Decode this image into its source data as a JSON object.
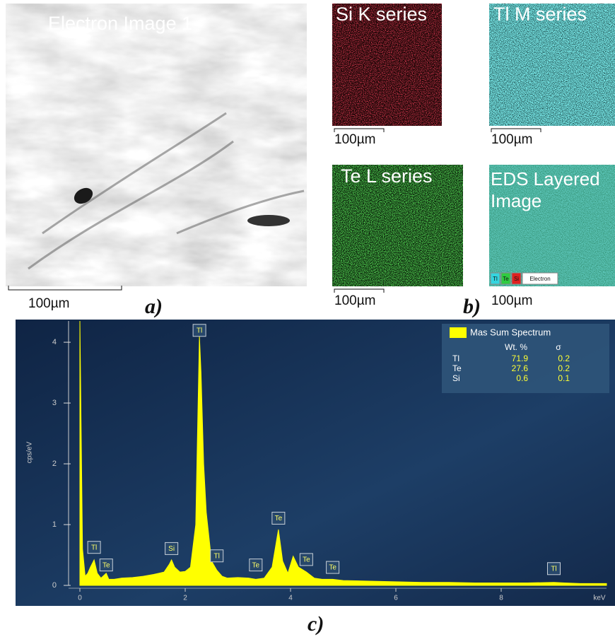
{
  "figure": {
    "a": {
      "title": "Electron Image 1",
      "scale": "100µm",
      "label": "a)"
    },
    "b": {
      "label": "b)",
      "panels": [
        {
          "title": "Si K series",
          "scale": "100µm"
        },
        {
          "title": "Tl M series",
          "scale": "100µm"
        },
        {
          "title": "Te L series",
          "scale": "100µm"
        },
        {
          "title": "EDS Layered Image",
          "scale": "100µm"
        }
      ],
      "layered_legend": [
        "Tl",
        "Te",
        "Si",
        "Electron"
      ]
    },
    "c": {
      "label": "c)"
    }
  },
  "chart_data": {
    "type": "area",
    "x_label": "keV",
    "y_label": "cps/eV",
    "xlim": [
      0,
      10
    ],
    "ylim": [
      0,
      4.35
    ],
    "xticks": [
      0,
      2,
      4,
      6,
      8
    ],
    "yticks": [
      0,
      1,
      2,
      3,
      4
    ],
    "series": [
      {
        "name": "Mas Sum Spectrum",
        "color": "#ffff00",
        "x": [
          0,
          0.05,
          0.1,
          0.15,
          0.2,
          0.27,
          0.33,
          0.4,
          0.5,
          0.55,
          0.65,
          0.8,
          1.0,
          1.2,
          1.4,
          1.5,
          1.6,
          1.7,
          1.74,
          1.8,
          1.9,
          2.0,
          2.1,
          2.2,
          2.27,
          2.3,
          2.35,
          2.4,
          2.5,
          2.6,
          2.7,
          2.8,
          3.0,
          3.2,
          3.34,
          3.5,
          3.65,
          3.77,
          3.85,
          3.95,
          4.05,
          4.15,
          4.3,
          4.45,
          4.6,
          4.8,
          5.0,
          5.5,
          6,
          6.5,
          7,
          7.5,
          8,
          8.5,
          9.0,
          9.2,
          9.5,
          10
        ],
        "values": [
          4.35,
          0.6,
          0.15,
          0.2,
          0.3,
          0.42,
          0.2,
          0.12,
          0.2,
          0.1,
          0.1,
          0.12,
          0.13,
          0.15,
          0.18,
          0.2,
          0.22,
          0.35,
          0.42,
          0.3,
          0.22,
          0.23,
          0.3,
          1.0,
          4.1,
          3.5,
          2.0,
          1.2,
          0.4,
          0.25,
          0.15,
          0.12,
          0.13,
          0.12,
          0.1,
          0.12,
          0.3,
          0.92,
          0.4,
          0.2,
          0.48,
          0.3,
          0.22,
          0.12,
          0.1,
          0.1,
          0.08,
          0.07,
          0.06,
          0.05,
          0.05,
          0.04,
          0.04,
          0.04,
          0.05,
          0.04,
          0.03,
          0.03
        ]
      }
    ],
    "annotations": [
      {
        "label": "Tl",
        "x": 0.27,
        "y": 0.62
      },
      {
        "label": "Te",
        "x": 0.5,
        "y": 0.33
      },
      {
        "label": "Si",
        "x": 1.74,
        "y": 0.6
      },
      {
        "label": "Tl",
        "x": 2.27,
        "y": 4.19
      },
      {
        "label": "Tl",
        "x": 2.6,
        "y": 0.48
      },
      {
        "label": "Te",
        "x": 3.34,
        "y": 0.33
      },
      {
        "label": "Te",
        "x": 3.77,
        "y": 1.1
      },
      {
        "label": "Te",
        "x": 4.3,
        "y": 0.42
      },
      {
        "label": "Te",
        "x": 4.8,
        "y": 0.29
      },
      {
        "label": "Tl",
        "x": 9.0,
        "y": 0.27
      }
    ],
    "table": {
      "columns": [
        "Wt. %",
        "σ"
      ],
      "rows": [
        {
          "element": "Tl",
          "wt": 71.9,
          "sigma": 0.2
        },
        {
          "element": "Te",
          "wt": 27.6,
          "sigma": 0.2
        },
        {
          "element": "Si",
          "wt": 0.6,
          "sigma": 0.1
        }
      ]
    }
  }
}
